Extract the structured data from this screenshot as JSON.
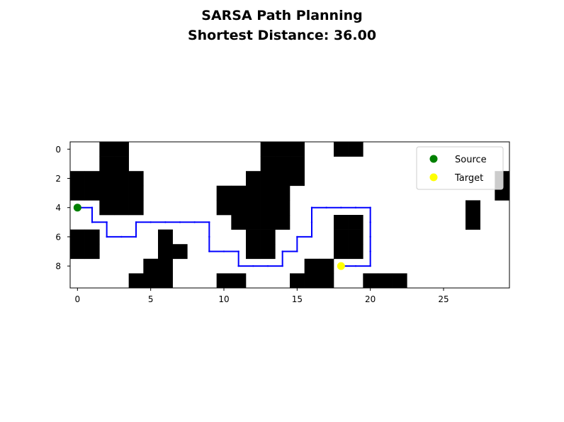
{
  "chart_data": {
    "type": "grid-path",
    "title": "SARSA Path Planning",
    "subtitle": "Shortest Distance: 36.00",
    "grid_cols": 30,
    "grid_rows": 10,
    "xlim": [
      -0.5,
      29.5
    ],
    "ylim": [
      9.5,
      -0.5
    ],
    "x_ticks": [
      0,
      5,
      10,
      15,
      20,
      25
    ],
    "y_ticks": [
      0,
      2,
      4,
      6,
      8
    ],
    "obstacles": [
      [
        0,
        2
      ],
      [
        0,
        3
      ],
      [
        0,
        13
      ],
      [
        0,
        14
      ],
      [
        0,
        15
      ],
      [
        0,
        18
      ],
      [
        0,
        19
      ],
      [
        1,
        2
      ],
      [
        1,
        3
      ],
      [
        1,
        13
      ],
      [
        1,
        14
      ],
      [
        1,
        15
      ],
      [
        2,
        0
      ],
      [
        2,
        1
      ],
      [
        2,
        2
      ],
      [
        2,
        3
      ],
      [
        2,
        4
      ],
      [
        2,
        12
      ],
      [
        2,
        13
      ],
      [
        2,
        14
      ],
      [
        2,
        15
      ],
      [
        2,
        29
      ],
      [
        3,
        0
      ],
      [
        3,
        1
      ],
      [
        3,
        2
      ],
      [
        3,
        3
      ],
      [
        3,
        4
      ],
      [
        3,
        10
      ],
      [
        3,
        11
      ],
      [
        3,
        12
      ],
      [
        3,
        13
      ],
      [
        3,
        14
      ],
      [
        3,
        29
      ],
      [
        4,
        2
      ],
      [
        4,
        3
      ],
      [
        4,
        4
      ],
      [
        4,
        10
      ],
      [
        4,
        11
      ],
      [
        4,
        12
      ],
      [
        4,
        13
      ],
      [
        4,
        14
      ],
      [
        4,
        27
      ],
      [
        5,
        11
      ],
      [
        5,
        12
      ],
      [
        5,
        13
      ],
      [
        5,
        14
      ],
      [
        5,
        18
      ],
      [
        5,
        19
      ],
      [
        5,
        27
      ],
      [
        6,
        0
      ],
      [
        6,
        1
      ],
      [
        6,
        6
      ],
      [
        6,
        12
      ],
      [
        6,
        13
      ],
      [
        6,
        18
      ],
      [
        6,
        19
      ],
      [
        7,
        0
      ],
      [
        7,
        1
      ],
      [
        7,
        6
      ],
      [
        7,
        7
      ],
      [
        7,
        12
      ],
      [
        7,
        13
      ],
      [
        7,
        18
      ],
      [
        7,
        19
      ],
      [
        8,
        5
      ],
      [
        8,
        6
      ],
      [
        8,
        16
      ],
      [
        8,
        17
      ],
      [
        9,
        4
      ],
      [
        9,
        5
      ],
      [
        9,
        6
      ],
      [
        9,
        10
      ],
      [
        9,
        11
      ],
      [
        9,
        15
      ],
      [
        9,
        16
      ],
      [
        9,
        17
      ],
      [
        9,
        20
      ],
      [
        9,
        21
      ],
      [
        9,
        22
      ]
    ],
    "path": [
      [
        0,
        4
      ],
      [
        1,
        4
      ],
      [
        1,
        5
      ],
      [
        2,
        5
      ],
      [
        2,
        6
      ],
      [
        3,
        6
      ],
      [
        4,
        6
      ],
      [
        4,
        5
      ],
      [
        5,
        5
      ],
      [
        6,
        5
      ],
      [
        7,
        5
      ],
      [
        8,
        5
      ],
      [
        9,
        5
      ],
      [
        9,
        6
      ],
      [
        9,
        7
      ],
      [
        10,
        7
      ],
      [
        11,
        7
      ],
      [
        11,
        8
      ],
      [
        12,
        8
      ],
      [
        13,
        8
      ],
      [
        14,
        8
      ],
      [
        14,
        7
      ],
      [
        15,
        7
      ],
      [
        15,
        6
      ],
      [
        16,
        6
      ],
      [
        16,
        5
      ],
      [
        16,
        4
      ],
      [
        17,
        4
      ],
      [
        18,
        4
      ],
      [
        19,
        4
      ],
      [
        20,
        4
      ],
      [
        20,
        5
      ],
      [
        20,
        6
      ],
      [
        20,
        7
      ],
      [
        20,
        8
      ],
      [
        19,
        8
      ],
      [
        18,
        8
      ]
    ],
    "source": [
      0,
      4
    ],
    "target": [
      18,
      8
    ],
    "colors": {
      "path": "#0000ff",
      "source": "#008000",
      "target": "#ffff00",
      "obstacle": "#000000"
    },
    "legend": {
      "placement": "upper right",
      "entries": [
        "Source",
        "Target"
      ]
    }
  }
}
